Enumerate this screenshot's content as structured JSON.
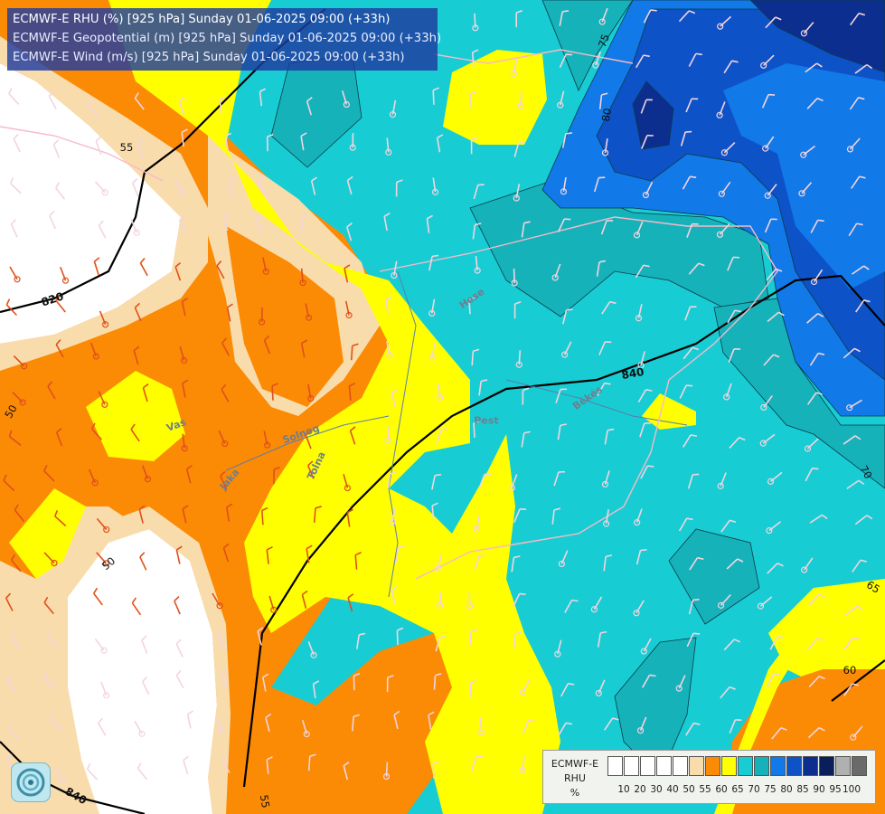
{
  "titles": [
    "ECMWF-E RHU (%) [925 hPa] Sunday 01-06-2025 09:00 (+33h)",
    "ECMWF-E Geopotential (m) [925 hPa] Sunday 01-06-2025 09:00 (+33h)",
    "ECMWF-E Wind (m/s) [925 hPa] Sunday 01-06-2025 09:00 (+33h)"
  ],
  "legend": {
    "model": "ECMWF-E",
    "field": "RHU",
    "unit": "%",
    "colors": [
      "#ffffff",
      "#ffffff",
      "#ffffff",
      "#ffffff",
      "#ffffff",
      "#f9dcac",
      "#fb8a05",
      "#ffff00",
      "#17cdd3",
      "#16b2ba",
      "#1179e8",
      "#0e52c8",
      "#0c2f8f",
      "#0a1f5a",
      "#b0b0b0",
      "#6a6a6a"
    ],
    "ticks": [
      "10",
      "20",
      "30",
      "40",
      "50",
      "55",
      "60",
      "65",
      "70",
      "75",
      "80",
      "85",
      "90",
      "95",
      "100"
    ]
  },
  "geopotential_labels": [
    "820",
    "840",
    "840"
  ],
  "rhu_contour_labels": [
    "55",
    "50",
    "50",
    "55",
    "75",
    "80",
    "70",
    "65",
    "60"
  ],
  "place_labels": [
    "Hese",
    "Békés",
    "Pest",
    "Solnog",
    "Jaka",
    "Tolna",
    "Vas"
  ],
  "colors": {
    "white": "#ffffff",
    "tan": "#f9dcac",
    "orange": "#fb8a05",
    "yellow": "#ffff00",
    "cyan": "#17cdd3",
    "teal": "#16b2ba",
    "blue": "#1179e8",
    "mid_blue": "#0e52c8",
    "navy": "#0c2f8f",
    "deep_navy": "#0a1f5a"
  },
  "icons": [
    "wind-barb-icon",
    "station-icon",
    "logo-icon"
  ]
}
